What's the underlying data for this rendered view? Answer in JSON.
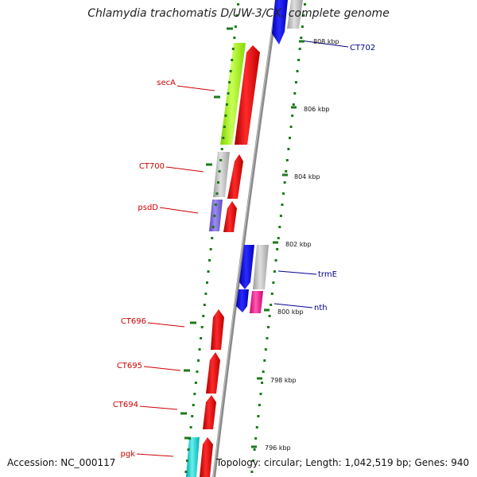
{
  "title": "Chlamydia trachomatis D/UW-3/CX, complete genome",
  "footer": {
    "accession": "Accession: NC_000117",
    "summary": "Topology: circular; Length: 1,042,519 bp; Genes: 940"
  },
  "position_labels": [
    "808 kbp",
    "806 kbp",
    "804 kbp",
    "802 kbp",
    "800 kbp",
    "798 kbp",
    "796 kbp"
  ],
  "genes": [
    {
      "name": "secA",
      "strand": "reverse",
      "color": "#cc0000"
    },
    {
      "name": "CT700",
      "strand": "reverse",
      "color": "#cc0000"
    },
    {
      "name": "psdD",
      "strand": "reverse",
      "color": "#cc0000"
    },
    {
      "name": "CT696",
      "strand": "reverse",
      "color": "#cc0000"
    },
    {
      "name": "CT695",
      "strand": "reverse",
      "color": "#cc0000"
    },
    {
      "name": "CT694",
      "strand": "reverse",
      "color": "#cc0000"
    },
    {
      "name": "pgk",
      "strand": "reverse",
      "color": "#cc0000"
    },
    {
      "name": "CT702",
      "strand": "forward",
      "color": "#00008b"
    },
    {
      "name": "trmE",
      "strand": "forward",
      "color": "#00008b"
    },
    {
      "name": "nth",
      "strand": "forward",
      "color": "#00008b"
    }
  ],
  "colors": {
    "reverse_cds": "#ff0000",
    "forward_cds": "#0000ff",
    "backbone": "#888888",
    "ticks": "#1a7a1a",
    "cog_lime": "#a6ff26",
    "cog_gray": "#c0c0c0",
    "cog_purple": "#7b68dd",
    "cog_magenta": "#ff1493",
    "cog_cyan": "#22d3d3"
  }
}
